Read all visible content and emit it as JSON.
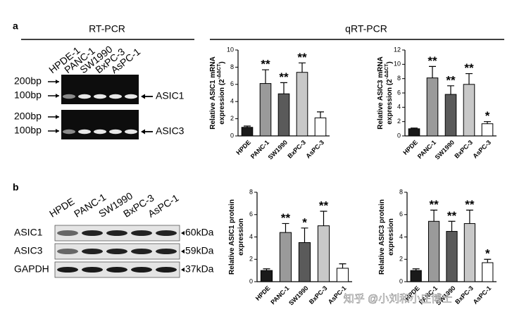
{
  "panel_a": {
    "label": "a",
    "rt_pcr_title": "RT-PCR",
    "qrt_pcr_title": "qRT-PCR",
    "lanes": [
      "HPDE-1",
      "PANC-1",
      "SW1990",
      "BxPC-3",
      "AsPC-1"
    ],
    "gels": [
      {
        "markers": [
          "200bp",
          "100bp"
        ],
        "gene": "ASIC1"
      },
      {
        "markers": [
          "200bp",
          "100bp"
        ],
        "gene": "ASIC3"
      }
    ]
  },
  "panel_b": {
    "label": "b",
    "lanes": [
      "HPDE",
      "PANC-1",
      "SW1990",
      "BxPC-3",
      "AsPC-1"
    ],
    "blots": [
      {
        "name": "ASIC1",
        "size": "60kDa"
      },
      {
        "name": "ASIC3",
        "size": "59kDa"
      },
      {
        "name": "GAPDH",
        "size": "37kDa"
      }
    ]
  },
  "watermark": "知乎 @小刘和小庄博士",
  "chart_data": [
    {
      "type": "bar",
      "y_label": "Relative ASIC1 mRNA",
      "y_label_2": "expression (2",
      "y_label_sup": "-ΔΔCT",
      "y_label_end": ")",
      "categories": [
        "HPDE",
        "PANC-1",
        "SW1990",
        "BxPC-3",
        "AsPC-3"
      ],
      "values": [
        1.0,
        6.1,
        4.9,
        7.4,
        2.1
      ],
      "errors": [
        0.15,
        1.6,
        1.3,
        1.1,
        0.7
      ],
      "colors": [
        "#1a1a1a",
        "#9a9a9a",
        "#5a5a5a",
        "#c8c8c8",
        "#ffffff"
      ],
      "annotations": [
        null,
        "**",
        "**",
        "**",
        null
      ],
      "ylim": [
        0,
        10
      ],
      "yticks": [
        0,
        2,
        4,
        6,
        8,
        10
      ]
    },
    {
      "type": "bar",
      "y_label": "Relative ASIC3 mRNA",
      "y_label_2": "expression (2",
      "y_label_sup": "-ΔΔCT",
      "y_label_end": ")",
      "categories": [
        "HPDE",
        "PANC-1",
        "SW1990",
        "BxPC-3",
        "AsPC-3"
      ],
      "values": [
        1.0,
        8.1,
        5.8,
        7.2,
        1.7
      ],
      "errors": [
        0.1,
        1.6,
        1.2,
        1.5,
        0.3
      ],
      "colors": [
        "#1a1a1a",
        "#9a9a9a",
        "#5a5a5a",
        "#c8c8c8",
        "#ffffff"
      ],
      "annotations": [
        null,
        "**",
        "**",
        "**",
        "*"
      ],
      "ylim": [
        0,
        12
      ],
      "yticks": [
        0,
        2,
        4,
        6,
        8,
        10,
        12
      ]
    },
    {
      "type": "bar",
      "y_label": "Relative ASIC1 protein",
      "y_label_2": "expression",
      "categories": [
        "HPDE",
        "PANC-1",
        "SW1990",
        "BxPC-3",
        "AsPC-1"
      ],
      "values": [
        1.0,
        4.4,
        3.5,
        5.0,
        1.2
      ],
      "errors": [
        0.15,
        0.8,
        1.3,
        1.3,
        0.4
      ],
      "colors": [
        "#1a1a1a",
        "#9a9a9a",
        "#5a5a5a",
        "#c8c8c8",
        "#ffffff"
      ],
      "annotations": [
        null,
        "**",
        "*",
        "**",
        null
      ],
      "ylim": [
        0,
        8
      ],
      "yticks": [
        0,
        2,
        4,
        6,
        8
      ]
    },
    {
      "type": "bar",
      "y_label": "Relative ASIC3 protein",
      "y_label_2": "expression",
      "categories": [
        "HPDE",
        "PANC-1",
        "SW1990",
        "BxPC-3",
        "AsPC-1"
      ],
      "values": [
        1.0,
        5.4,
        4.5,
        5.2,
        1.7
      ],
      "errors": [
        0.15,
        1.0,
        0.9,
        1.2,
        0.3
      ],
      "colors": [
        "#1a1a1a",
        "#9a9a9a",
        "#5a5a5a",
        "#c8c8c8",
        "#ffffff"
      ],
      "annotations": [
        null,
        "**",
        "**",
        "**",
        "*"
      ],
      "ylim": [
        0,
        8
      ],
      "yticks": [
        0,
        2,
        4,
        6,
        8
      ]
    }
  ]
}
